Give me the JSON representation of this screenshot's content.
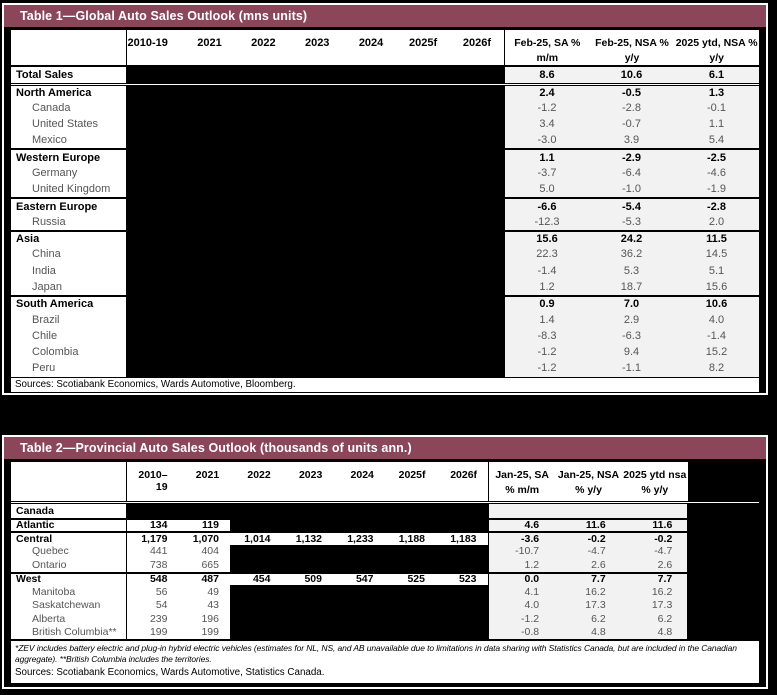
{
  "colors": {
    "title_bar": "#8c4659",
    "stat_cell_bg": "#f2f2f2",
    "redaction": "#000000",
    "subrow_text": "#555555",
    "frame_border": "#ffffff"
  },
  "table1": {
    "title": "Table 1—Global Auto Sales Outlook (mns units)",
    "year_columns": [
      "2010-19",
      "2021",
      "2022",
      "2023",
      "2024",
      "2025f",
      "2026f"
    ],
    "stat_columns": [
      {
        "line1": "Feb-25, SA %",
        "line2": "m/m"
      },
      {
        "line1": "Feb-25, NSA %",
        "line2": "y/y"
      },
      {
        "line1": "2025 ytd, NSA %",
        "line2": "y/y"
      }
    ],
    "years_redacted": true,
    "rows": [
      {
        "label": "Total Sales",
        "bold": true,
        "sep": null,
        "stats": [
          "8.6",
          "10.6",
          "6.1"
        ]
      },
      {
        "label": "North America",
        "bold": true,
        "sep": "double",
        "stats": [
          "2.4",
          "-0.5",
          "1.3"
        ]
      },
      {
        "label": "Canada",
        "bold": false,
        "sep": null,
        "stats": [
          "-1.2",
          "-2.8",
          "-0.1"
        ]
      },
      {
        "label": "United States",
        "bold": false,
        "sep": null,
        "stats": [
          "3.4",
          "-0.7",
          "1.1"
        ]
      },
      {
        "label": "Mexico",
        "bold": false,
        "sep": null,
        "stats": [
          "-3.0",
          "3.9",
          "5.4"
        ]
      },
      {
        "label": "Western Europe",
        "bold": true,
        "sep": "solid",
        "stats": [
          "1.1",
          "-2.9",
          "-2.5"
        ]
      },
      {
        "label": "Germany",
        "bold": false,
        "sep": null,
        "stats": [
          "-3.7",
          "-6.4",
          "-4.6"
        ]
      },
      {
        "label": "United Kingdom",
        "bold": false,
        "sep": null,
        "stats": [
          "5.0",
          "-1.0",
          "-1.9"
        ]
      },
      {
        "label": "Eastern Europe",
        "bold": true,
        "sep": "solid",
        "stats": [
          "-6.6",
          "-5.4",
          "-2.8"
        ]
      },
      {
        "label": "Russia",
        "bold": false,
        "sep": null,
        "stats": [
          "-12.3",
          "-5.3",
          "2.0"
        ]
      },
      {
        "label": "Asia",
        "bold": true,
        "sep": "solid",
        "stats": [
          "15.6",
          "24.2",
          "11.5"
        ]
      },
      {
        "label": "China",
        "bold": false,
        "sep": null,
        "stats": [
          "22.3",
          "36.2",
          "14.5"
        ]
      },
      {
        "label": "India",
        "bold": false,
        "sep": null,
        "stats": [
          "-1.4",
          "5.3",
          "5.1"
        ]
      },
      {
        "label": "Japan",
        "bold": false,
        "sep": null,
        "stats": [
          "1.2",
          "18.7",
          "15.6"
        ]
      },
      {
        "label": "South America",
        "bold": true,
        "sep": "solid",
        "stats": [
          "0.9",
          "7.0",
          "10.6"
        ]
      },
      {
        "label": "Brazil",
        "bold": false,
        "sep": null,
        "stats": [
          "1.4",
          "2.9",
          "4.0"
        ]
      },
      {
        "label": "Chile",
        "bold": false,
        "sep": null,
        "stats": [
          "-8.3",
          "-6.3",
          "-1.4"
        ]
      },
      {
        "label": "Colombia",
        "bold": false,
        "sep": null,
        "stats": [
          "-1.2",
          "9.4",
          "15.2"
        ]
      },
      {
        "label": "Peru",
        "bold": false,
        "sep": null,
        "stats": [
          "-1.2",
          "-1.1",
          "8.2"
        ]
      }
    ],
    "sources": "Sources: Scotiabank Economics, Wards Automotive, Bloomberg."
  },
  "table2": {
    "title": "Table 2—Provincial Auto Sales Outlook (thousands of units ann.)",
    "year_columns": [
      "2010–19",
      "2021",
      "2022",
      "2023",
      "2024",
      "2025f",
      "2026f"
    ],
    "stat_columns": [
      {
        "line1": "Jan-25, SA",
        "line2": "% m/m"
      },
      {
        "line1": "Jan-25, NSA",
        "line2": "% y/y"
      },
      {
        "line1": "2025 ytd nsa",
        "line2": "% y/y"
      }
    ],
    "rows": [
      {
        "label": "Canada",
        "bold": true,
        "sep": null,
        "years": [
          null,
          null,
          null,
          null,
          null,
          null,
          null
        ],
        "stats": [
          "",
          "",
          ""
        ]
      },
      {
        "label": "Atlantic",
        "bold": true,
        "sep": "solid",
        "years": [
          "134",
          "119",
          null,
          null,
          null,
          null,
          null
        ],
        "stats": [
          "4.6",
          "11.6",
          "11.6"
        ]
      },
      {
        "label": "Central",
        "bold": true,
        "sep": "solid",
        "years": [
          "1,179",
          "1,070",
          "1,014",
          "1,132",
          "1,233",
          "1,188",
          "1,183"
        ],
        "stats": [
          "-3.6",
          "-0.2",
          "-0.2"
        ]
      },
      {
        "label": "Quebec",
        "bold": false,
        "sep": null,
        "years": [
          "441",
          "404",
          null,
          null,
          null,
          null,
          null
        ],
        "stats": [
          "-10.7",
          "-4.7",
          "-4.7"
        ]
      },
      {
        "label": "Ontario",
        "bold": false,
        "sep": null,
        "years": [
          "738",
          "665",
          null,
          null,
          null,
          null,
          null
        ],
        "stats": [
          "1.2",
          "2.6",
          "2.6"
        ]
      },
      {
        "label": "West",
        "bold": true,
        "sep": "solid",
        "years": [
          "548",
          "487",
          "454",
          "509",
          "547",
          "525",
          "523"
        ],
        "stats": [
          "0.0",
          "7.7",
          "7.7"
        ]
      },
      {
        "label": "Manitoba",
        "bold": false,
        "sep": null,
        "years": [
          "56",
          "49",
          null,
          null,
          null,
          null,
          null
        ],
        "stats": [
          "4.1",
          "16.2",
          "16.2"
        ]
      },
      {
        "label": "Saskatchewan",
        "bold": false,
        "sep": null,
        "years": [
          "54",
          "43",
          null,
          null,
          null,
          null,
          null
        ],
        "stats": [
          "4.0",
          "17.3",
          "17.3"
        ]
      },
      {
        "label": "Alberta",
        "bold": false,
        "sep": null,
        "years": [
          "239",
          "196",
          null,
          null,
          null,
          null,
          null
        ],
        "stats": [
          "-1.2",
          "6.2",
          "6.2"
        ]
      },
      {
        "label": "British Columbia**",
        "bold": false,
        "sep": null,
        "years": [
          "199",
          "199",
          null,
          null,
          null,
          null,
          null
        ],
        "stats": [
          "-0.8",
          "4.8",
          "4.8"
        ]
      }
    ],
    "footnote_lines": [
      "*ZEV includes battery electric and plug-in hybrid electric vehicles (estimates for NL, NS, and AB unavailable due to limitations in data sharing with Statistics Canada, but are included in the Canadian",
      "aggregate). **British Columbia includes the territories."
    ],
    "sources": "Sources: Scotiabank Economics, Wards Automotive, Statistics Canada."
  }
}
